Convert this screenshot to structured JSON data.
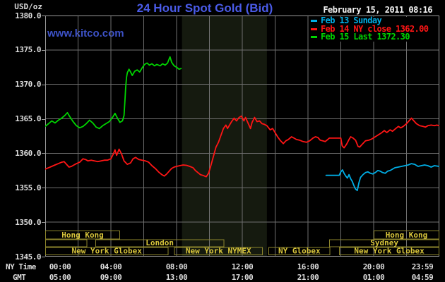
{
  "header": {
    "unit_label": "USD/oz",
    "title": "24 Hour Spot Gold (Bid)",
    "datetime": "February 15, 2011 08:16",
    "watermark": "www.kitco.com"
  },
  "legend": [
    {
      "label": "Feb 13 Sunday",
      "color": "#00aee6"
    },
    {
      "label": "Feb 14 NY close 1362.00",
      "color": "#ff1515"
    },
    {
      "label": "Feb 15 Last 1372.30",
      "color": "#00d400"
    }
  ],
  "axes": {
    "ny_label": "NY Time",
    "gmt_label": "GMT",
    "y_ticks": [
      "1380.0",
      "1375.0",
      "1370.0",
      "1365.0",
      "1360.0",
      "1355.0",
      "1350.0",
      "1345.0"
    ],
    "x_ticks": [
      {
        "hour": 0,
        "ny": "00:00",
        "gmt": "05:00"
      },
      {
        "hour": 4,
        "ny": "04:00",
        "gmt": "09:00"
      },
      {
        "hour": 8,
        "ny": "08:00",
        "gmt": "13:00"
      },
      {
        "hour": 12,
        "ny": "12:00",
        "gmt": "17:00"
      },
      {
        "hour": 16,
        "ny": "16:00",
        "gmt": "21:00"
      },
      {
        "hour": 20,
        "ny": "20:00",
        "gmt": "01:00"
      },
      {
        "hour": 23.983,
        "ny": "23:59",
        "gmt": "04:59"
      }
    ]
  },
  "sessions": [
    {
      "row": 0,
      "start": 0,
      "end": 4.56,
      "label": "Hong Kong"
    },
    {
      "row": 0,
      "start": 20.0,
      "end": 24,
      "label": "Hong Kong"
    },
    {
      "row": 1,
      "start": 0,
      "end": 2.55,
      "label": ""
    },
    {
      "row": 1,
      "start": 3.05,
      "end": 10.9,
      "label": "London"
    },
    {
      "row": 1,
      "start": 17.3,
      "end": 24,
      "label": "Sydney"
    },
    {
      "row": 2,
      "start": 0,
      "end": 7.5,
      "label": "New York Globex"
    },
    {
      "row": 2,
      "start": 7.85,
      "end": 13.25,
      "label": "New York NYMEX"
    },
    {
      "row": 2,
      "start": 13.6,
      "end": 17.35,
      "label": "NY Globex"
    },
    {
      "row": 2,
      "start": 17.9,
      "end": 24,
      "label": "New York Globex"
    }
  ],
  "colors": {
    "background": "#000000",
    "grid": "#6f6f6f",
    "border": "#9a9a9a",
    "nymex_band": "#151a0f",
    "session_border": "#8d852c",
    "session_text": "#d9c63b",
    "title_blue": "#4a5be8",
    "watermark_blue": "#3d52c8",
    "label_text": "#dcdcdc"
  },
  "chart_data": {
    "type": "line",
    "title": "24 Hour Spot Gold (Bid)",
    "xlabel": "NY Time (hours, 00:00-23:59)",
    "ylabel": "USD/oz",
    "x_range_hours": [
      0,
      24
    ],
    "ylim": [
      1345,
      1380
    ],
    "y_grid_step": 5,
    "x_grid_step_hours": 2,
    "grid": true,
    "legend_position": "top-right",
    "nymex_band_hours": [
      8.33,
      13.5
    ],
    "series": [
      {
        "name": "Feb 13 Sunday",
        "color": "#00aee6",
        "points": [
          [
            17.1,
            1356.8
          ],
          [
            17.9,
            1356.8
          ],
          [
            18.0,
            1357.3
          ],
          [
            18.1,
            1357.6
          ],
          [
            18.2,
            1357.1
          ],
          [
            18.3,
            1356.7
          ],
          [
            18.4,
            1356.4
          ],
          [
            18.5,
            1356.9
          ],
          [
            18.6,
            1356.3
          ],
          [
            18.7,
            1355.9
          ],
          [
            18.8,
            1355.3
          ],
          [
            18.9,
            1354.8
          ],
          [
            19.0,
            1354.6
          ],
          [
            19.1,
            1355.7
          ],
          [
            19.2,
            1356.5
          ],
          [
            19.35,
            1356.9
          ],
          [
            19.5,
            1357.2
          ],
          [
            19.65,
            1357.3
          ],
          [
            19.8,
            1357.1
          ],
          [
            19.95,
            1357.0
          ],
          [
            20.1,
            1357.2
          ],
          [
            20.25,
            1357.5
          ],
          [
            20.4,
            1357.4
          ],
          [
            20.55,
            1357.2
          ],
          [
            20.7,
            1357.1
          ],
          [
            20.85,
            1357.4
          ],
          [
            21.0,
            1357.5
          ],
          [
            21.15,
            1357.7
          ],
          [
            21.3,
            1357.9
          ],
          [
            21.5,
            1358.0
          ],
          [
            21.7,
            1358.1
          ],
          [
            21.9,
            1358.2
          ],
          [
            22.1,
            1358.3
          ],
          [
            22.3,
            1358.5
          ],
          [
            22.5,
            1358.4
          ],
          [
            22.7,
            1358.1
          ],
          [
            22.9,
            1358.2
          ],
          [
            23.1,
            1358.3
          ],
          [
            23.3,
            1358.2
          ],
          [
            23.5,
            1358.0
          ],
          [
            23.7,
            1358.2
          ],
          [
            23.98,
            1358.1
          ]
        ]
      },
      {
        "name": "Feb 14 NY close 1362.00",
        "color": "#ff1515",
        "close_value": 1362.0,
        "points": [
          [
            0,
            1357.7
          ],
          [
            0.2,
            1357.9
          ],
          [
            0.4,
            1358.1
          ],
          [
            0.6,
            1358.3
          ],
          [
            0.8,
            1358.5
          ],
          [
            1.0,
            1358.7
          ],
          [
            1.15,
            1358.8
          ],
          [
            1.3,
            1358.4
          ],
          [
            1.45,
            1358.0
          ],
          [
            1.6,
            1358.1
          ],
          [
            1.75,
            1358.3
          ],
          [
            1.9,
            1358.5
          ],
          [
            2.1,
            1358.7
          ],
          [
            2.3,
            1359.2
          ],
          [
            2.45,
            1359.1
          ],
          [
            2.6,
            1358.9
          ],
          [
            2.8,
            1359.0
          ],
          [
            3.0,
            1358.9
          ],
          [
            3.2,
            1358.8
          ],
          [
            3.4,
            1358.9
          ],
          [
            3.6,
            1359.0
          ],
          [
            3.8,
            1359.0
          ],
          [
            4.0,
            1359.2
          ],
          [
            4.15,
            1359.9
          ],
          [
            4.25,
            1360.5
          ],
          [
            4.35,
            1359.7
          ],
          [
            4.5,
            1360.6
          ],
          [
            4.65,
            1359.9
          ],
          [
            4.8,
            1358.9
          ],
          [
            5.0,
            1358.4
          ],
          [
            5.2,
            1358.6
          ],
          [
            5.35,
            1359.2
          ],
          [
            5.5,
            1359.4
          ],
          [
            5.7,
            1359.1
          ],
          [
            5.9,
            1359.0
          ],
          [
            6.1,
            1358.9
          ],
          [
            6.3,
            1358.7
          ],
          [
            6.5,
            1358.2
          ],
          [
            6.7,
            1357.8
          ],
          [
            6.9,
            1357.3
          ],
          [
            7.1,
            1356.9
          ],
          [
            7.25,
            1356.7
          ],
          [
            7.4,
            1357.0
          ],
          [
            7.55,
            1357.4
          ],
          [
            7.7,
            1357.8
          ],
          [
            7.85,
            1358.0
          ],
          [
            8.0,
            1358.1
          ],
          [
            8.2,
            1358.2
          ],
          [
            8.4,
            1358.3
          ],
          [
            8.6,
            1358.25
          ],
          [
            8.8,
            1358.1
          ],
          [
            9.0,
            1357.9
          ],
          [
            9.15,
            1357.5
          ],
          [
            9.3,
            1357.2
          ],
          [
            9.45,
            1356.9
          ],
          [
            9.6,
            1356.8
          ],
          [
            9.7,
            1356.7
          ],
          [
            9.8,
            1356.6
          ],
          [
            9.95,
            1357.1
          ],
          [
            10.1,
            1358.3
          ],
          [
            10.25,
            1359.6
          ],
          [
            10.4,
            1360.9
          ],
          [
            10.55,
            1361.6
          ],
          [
            10.7,
            1362.6
          ],
          [
            10.85,
            1363.6
          ],
          [
            11.0,
            1364.1
          ],
          [
            11.1,
            1363.6
          ],
          [
            11.2,
            1364.0
          ],
          [
            11.35,
            1364.6
          ],
          [
            11.5,
            1365.1
          ],
          [
            11.65,
            1364.7
          ],
          [
            11.8,
            1365.2
          ],
          [
            11.95,
            1365.4
          ],
          [
            12.1,
            1364.7
          ],
          [
            12.2,
            1365.2
          ],
          [
            12.35,
            1364.4
          ],
          [
            12.5,
            1363.6
          ],
          [
            12.6,
            1364.5
          ],
          [
            12.75,
            1365.2
          ],
          [
            12.9,
            1364.6
          ],
          [
            13.05,
            1364.7
          ],
          [
            13.2,
            1364.3
          ],
          [
            13.35,
            1364.2
          ],
          [
            13.5,
            1364.0
          ],
          [
            13.7,
            1363.4
          ],
          [
            13.85,
            1363.6
          ],
          [
            14.0,
            1363.0
          ],
          [
            14.15,
            1362.4
          ],
          [
            14.3,
            1361.9
          ],
          [
            14.5,
            1361.4
          ],
          [
            14.65,
            1361.8
          ],
          [
            14.8,
            1362.0
          ],
          [
            15.0,
            1362.4
          ],
          [
            15.15,
            1362.2
          ],
          [
            15.3,
            1362.0
          ],
          [
            15.5,
            1361.9
          ],
          [
            15.7,
            1361.7
          ],
          [
            15.9,
            1361.6
          ],
          [
            16.1,
            1361.8
          ],
          [
            16.3,
            1362.2
          ],
          [
            16.45,
            1362.4
          ],
          [
            16.6,
            1362.3
          ],
          [
            16.75,
            1361.9
          ],
          [
            16.9,
            1361.8
          ],
          [
            17.05,
            1361.7
          ],
          [
            17.2,
            1362.0
          ],
          [
            17.3,
            1362.2
          ],
          [
            18.0,
            1362.2
          ],
          [
            18.08,
            1361.1
          ],
          [
            18.2,
            1360.8
          ],
          [
            18.35,
            1361.3
          ],
          [
            18.5,
            1362.0
          ],
          [
            18.6,
            1362.4
          ],
          [
            18.75,
            1362.2
          ],
          [
            18.9,
            1361.9
          ],
          [
            19.05,
            1361.0
          ],
          [
            19.15,
            1360.9
          ],
          [
            19.3,
            1361.3
          ],
          [
            19.5,
            1361.8
          ],
          [
            19.7,
            1361.9
          ],
          [
            19.9,
            1362.1
          ],
          [
            20.1,
            1362.4
          ],
          [
            20.3,
            1362.7
          ],
          [
            20.5,
            1363.0
          ],
          [
            20.65,
            1363.3
          ],
          [
            20.8,
            1363.0
          ],
          [
            21.0,
            1363.4
          ],
          [
            21.15,
            1363.2
          ],
          [
            21.3,
            1363.5
          ],
          [
            21.5,
            1363.9
          ],
          [
            21.65,
            1363.7
          ],
          [
            21.8,
            1363.9
          ],
          [
            22.0,
            1364.3
          ],
          [
            22.15,
            1364.7
          ],
          [
            22.3,
            1365.1
          ],
          [
            22.45,
            1364.7
          ],
          [
            22.6,
            1364.3
          ],
          [
            22.8,
            1364.0
          ],
          [
            23.0,
            1363.9
          ],
          [
            23.15,
            1363.8
          ],
          [
            23.3,
            1364.0
          ],
          [
            23.5,
            1364.1
          ],
          [
            23.7,
            1364.0
          ],
          [
            23.85,
            1364.1
          ],
          [
            23.98,
            1364.0
          ]
        ]
      },
      {
        "name": "Feb 15 Last 1372.30",
        "color": "#00d400",
        "last_value": 1372.3,
        "points": [
          [
            0.0,
            1363.9
          ],
          [
            0.2,
            1364.3
          ],
          [
            0.4,
            1364.7
          ],
          [
            0.6,
            1364.4
          ],
          [
            0.8,
            1364.8
          ],
          [
            1.0,
            1365.1
          ],
          [
            1.2,
            1365.5
          ],
          [
            1.35,
            1365.9
          ],
          [
            1.5,
            1365.3
          ],
          [
            1.7,
            1364.6
          ],
          [
            1.9,
            1364.0
          ],
          [
            2.1,
            1363.7
          ],
          [
            2.3,
            1363.9
          ],
          [
            2.5,
            1364.3
          ],
          [
            2.7,
            1364.8
          ],
          [
            2.9,
            1364.4
          ],
          [
            3.1,
            1363.8
          ],
          [
            3.3,
            1363.6
          ],
          [
            3.5,
            1364.0
          ],
          [
            3.7,
            1364.3
          ],
          [
            3.9,
            1364.6
          ],
          [
            4.1,
            1365.2
          ],
          [
            4.25,
            1365.8
          ],
          [
            4.4,
            1365.1
          ],
          [
            4.55,
            1364.5
          ],
          [
            4.7,
            1364.7
          ],
          [
            4.8,
            1365.5
          ],
          [
            4.85,
            1367.5
          ],
          [
            4.9,
            1369.5
          ],
          [
            4.95,
            1371.0
          ],
          [
            5.0,
            1371.7
          ],
          [
            5.1,
            1372.2
          ],
          [
            5.2,
            1371.8
          ],
          [
            5.3,
            1371.3
          ],
          [
            5.45,
            1371.9
          ],
          [
            5.6,
            1372.1
          ],
          [
            5.75,
            1371.8
          ],
          [
            5.9,
            1372.4
          ],
          [
            6.05,
            1372.9
          ],
          [
            6.2,
            1373.1
          ],
          [
            6.35,
            1372.8
          ],
          [
            6.5,
            1373.0
          ],
          [
            6.65,
            1372.7
          ],
          [
            6.8,
            1372.9
          ],
          [
            7.0,
            1372.7
          ],
          [
            7.15,
            1373.0
          ],
          [
            7.3,
            1372.8
          ],
          [
            7.45,
            1373.1
          ],
          [
            7.6,
            1374.0
          ],
          [
            7.7,
            1373.2
          ],
          [
            7.85,
            1372.7
          ],
          [
            8.0,
            1372.5
          ],
          [
            8.15,
            1372.2
          ],
          [
            8.27,
            1372.3
          ]
        ]
      }
    ]
  }
}
